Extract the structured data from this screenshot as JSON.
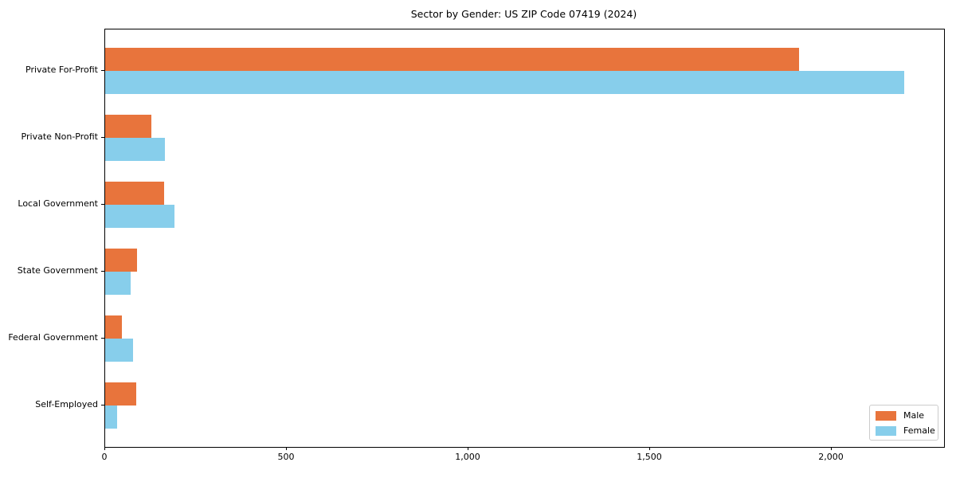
{
  "chart_data": {
    "type": "bar",
    "orientation": "horizontal",
    "title": "Sector by Gender: US ZIP Code 07419 (2024)",
    "categories": [
      "Private For-Profit",
      "Private Non-Profit",
      "Local Government",
      "State Government",
      "Federal Government",
      "Self-Employed"
    ],
    "series": [
      {
        "name": "Male",
        "color": "#e8743c",
        "values": [
          1910,
          128,
          162,
          88,
          45,
          86
        ]
      },
      {
        "name": "Female",
        "color": "#87ceeb",
        "values": [
          2200,
          165,
          190,
          71,
          77,
          33
        ]
      }
    ],
    "xlabel": "",
    "ylabel": "",
    "xlim": [
      0,
      2310
    ],
    "x_ticks": [
      0,
      500,
      1000,
      1500,
      2000
    ],
    "x_tick_labels": [
      "0",
      "500",
      "1,000",
      "1,500",
      "2,000"
    ],
    "grid": false,
    "legend_position": "lower right",
    "colors": {
      "male": "#e8743c",
      "female": "#87ceeb",
      "axis": "#000000",
      "legend_border": "#cccccc",
      "background": "#ffffff"
    }
  }
}
